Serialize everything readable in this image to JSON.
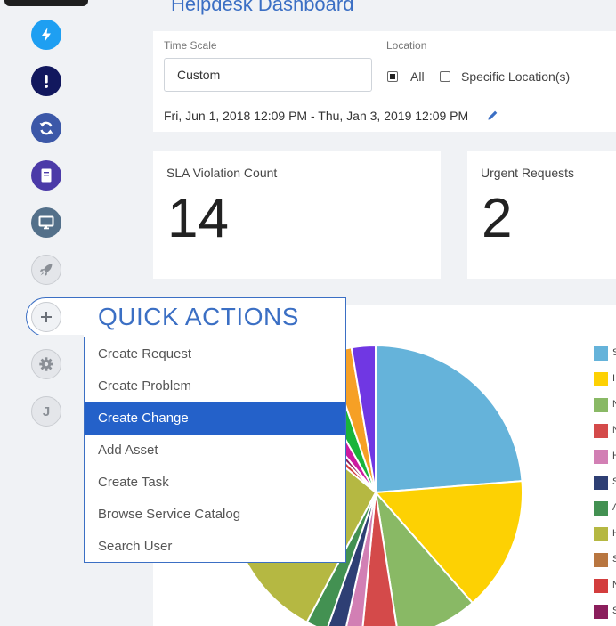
{
  "header": {
    "title": "Helpdesk Dashboard"
  },
  "sidebar": {
    "items": [
      {
        "icon": "flash-icon",
        "color": "#1e9ff2"
      },
      {
        "icon": "alert-icon",
        "color": "#12185e"
      },
      {
        "icon": "sync-icon",
        "color": "#3c58a8"
      },
      {
        "icon": "book-icon",
        "color": "#4b3aa8"
      },
      {
        "icon": "monitor-icon",
        "color": "#53708a"
      },
      {
        "icon": "rocket-icon",
        "color": "#e4e6ea"
      },
      {
        "icon": "plus-icon",
        "color": "#e4e6ea"
      },
      {
        "icon": "gear-icon",
        "color": "#e4e6ea"
      }
    ],
    "user_initial": "J"
  },
  "filters": {
    "time_scale_label": "Time Scale",
    "time_scale_value": "Custom",
    "location_label": "Location",
    "location_all": "All",
    "location_specific": "Specific Location(s)",
    "date_range": "Fri, Jun 1, 2018 12:09 PM - Thu, Jan 3, 2019 12:09 PM"
  },
  "stats": {
    "sla_title": "SLA Violation Count",
    "sla_value": "14",
    "urgent_title": "Urgent Requests",
    "urgent_value": "2"
  },
  "quick_actions": {
    "title": "QUICK ACTIONS",
    "items": [
      "Create Request",
      "Create Problem",
      "Create Change",
      "Add Asset",
      "Create Task",
      "Browse Service Catalog",
      "Search User"
    ],
    "active_index": 2
  },
  "chart_data": {
    "type": "pie",
    "title": "",
    "slices": [
      {
        "color": "#65b3da",
        "value": 22.5
      },
      {
        "color": "#fdd103",
        "value": 14.0
      },
      {
        "color": "#89b965",
        "value": 8.5
      },
      {
        "color": "#d44a4a",
        "value": 3.8
      },
      {
        "color": "#d27fb4",
        "value": 1.8
      },
      {
        "color": "#2e3f74",
        "value": 1.9
      },
      {
        "color": "#439152",
        "value": 2.2
      },
      {
        "color": "#b5b842",
        "value": 26.7
      },
      {
        "color": "#d33d3d",
        "value": 1.6
      },
      {
        "color": "#8b1e5c",
        "value": 1.3
      },
      {
        "color": "#cc1aa0",
        "value": 2.6
      },
      {
        "color": "#19b43a",
        "value": 2.8
      },
      {
        "color": "#f6a025",
        "value": 2.5
      },
      {
        "color": "#7037e3",
        "value": 2.5
      }
    ],
    "legend": [
      {
        "letter": "S",
        "color": "#65b3da"
      },
      {
        "letter": "I",
        "color": "#fdd103"
      },
      {
        "letter": "N",
        "color": "#89b965"
      },
      {
        "letter": "N",
        "color": "#d44a4a"
      },
      {
        "letter": "H",
        "color": "#d27fb4"
      },
      {
        "letter": "S",
        "color": "#2e3f74"
      },
      {
        "letter": "A",
        "color": "#439152"
      },
      {
        "letter": "H",
        "color": "#b5b842"
      },
      {
        "letter": "S",
        "color": "#b87640"
      },
      {
        "letter": "N",
        "color": "#d33d3d"
      },
      {
        "letter": "S",
        "color": "#8b1e5c"
      }
    ]
  }
}
